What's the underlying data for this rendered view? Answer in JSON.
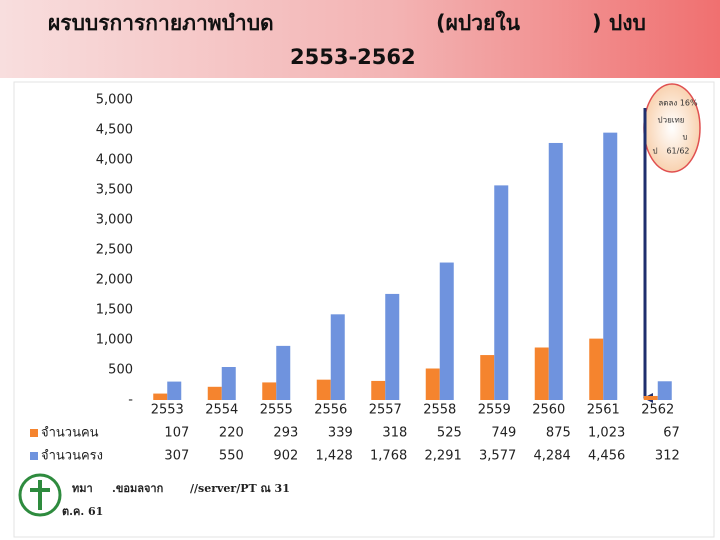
{
  "chart_data": {
    "type": "bar",
    "title_parts": [
      "ผรบบรการกายภาพบำบด",
      "(ผปวยใน",
      ") ปงบ",
      "2553-2562"
    ],
    "categories": [
      "2553",
      "2554",
      "2555",
      "2556",
      "2557",
      "2558",
      "2559",
      "2560",
      "2561",
      "2562"
    ],
    "series": [
      {
        "name": "จำนวนคน",
        "color": "#f5842e",
        "values": [
          107,
          220,
          293,
          339,
          318,
          525,
          749,
          875,
          1023,
          67
        ],
        "value_labels": [
          "107",
          "220",
          "293",
          "339",
          "318",
          "525",
          "749",
          "875",
          "1,023",
          "67"
        ]
      },
      {
        "name": "จำนวนครง",
        "color": "#6f93de",
        "values": [
          307,
          550,
          902,
          1428,
          1768,
          2291,
          3577,
          4284,
          4456,
          312
        ],
        "value_labels": [
          "307",
          "550",
          "902",
          "1,428",
          "1,768",
          "2,291",
          "3,577",
          "4,284",
          "4,456",
          "312"
        ]
      }
    ],
    "ylim": [
      0,
      5000
    ],
    "yticks": [
      {
        "value": 0,
        "label": "-"
      },
      500,
      {
        "value": 1000,
        "label": "1,000"
      },
      {
        "value": 1500,
        "label": "1,500"
      },
      {
        "value": 2000,
        "label": "2,000"
      },
      {
        "value": 2500,
        "label": "2,500"
      },
      {
        "value": 3000,
        "label": "3,000"
      },
      {
        "value": 3500,
        "label": "3,500"
      },
      {
        "value": 4000,
        "label": "4,000"
      },
      {
        "value": 4500,
        "label": "4,500"
      },
      {
        "value": 5000,
        "label": "5,000"
      }
    ],
    "grid": false,
    "annotation_lines": [
      "ลดลง 16%",
      "ปวยเทย",
      "บ",
      "ป",
      "61/62"
    ]
  },
  "footer": {
    "source_parts": [
      "ทมา",
      ".ขอมลจาก",
      "//server/PT ณ 31",
      "ต.ค. 61"
    ]
  }
}
